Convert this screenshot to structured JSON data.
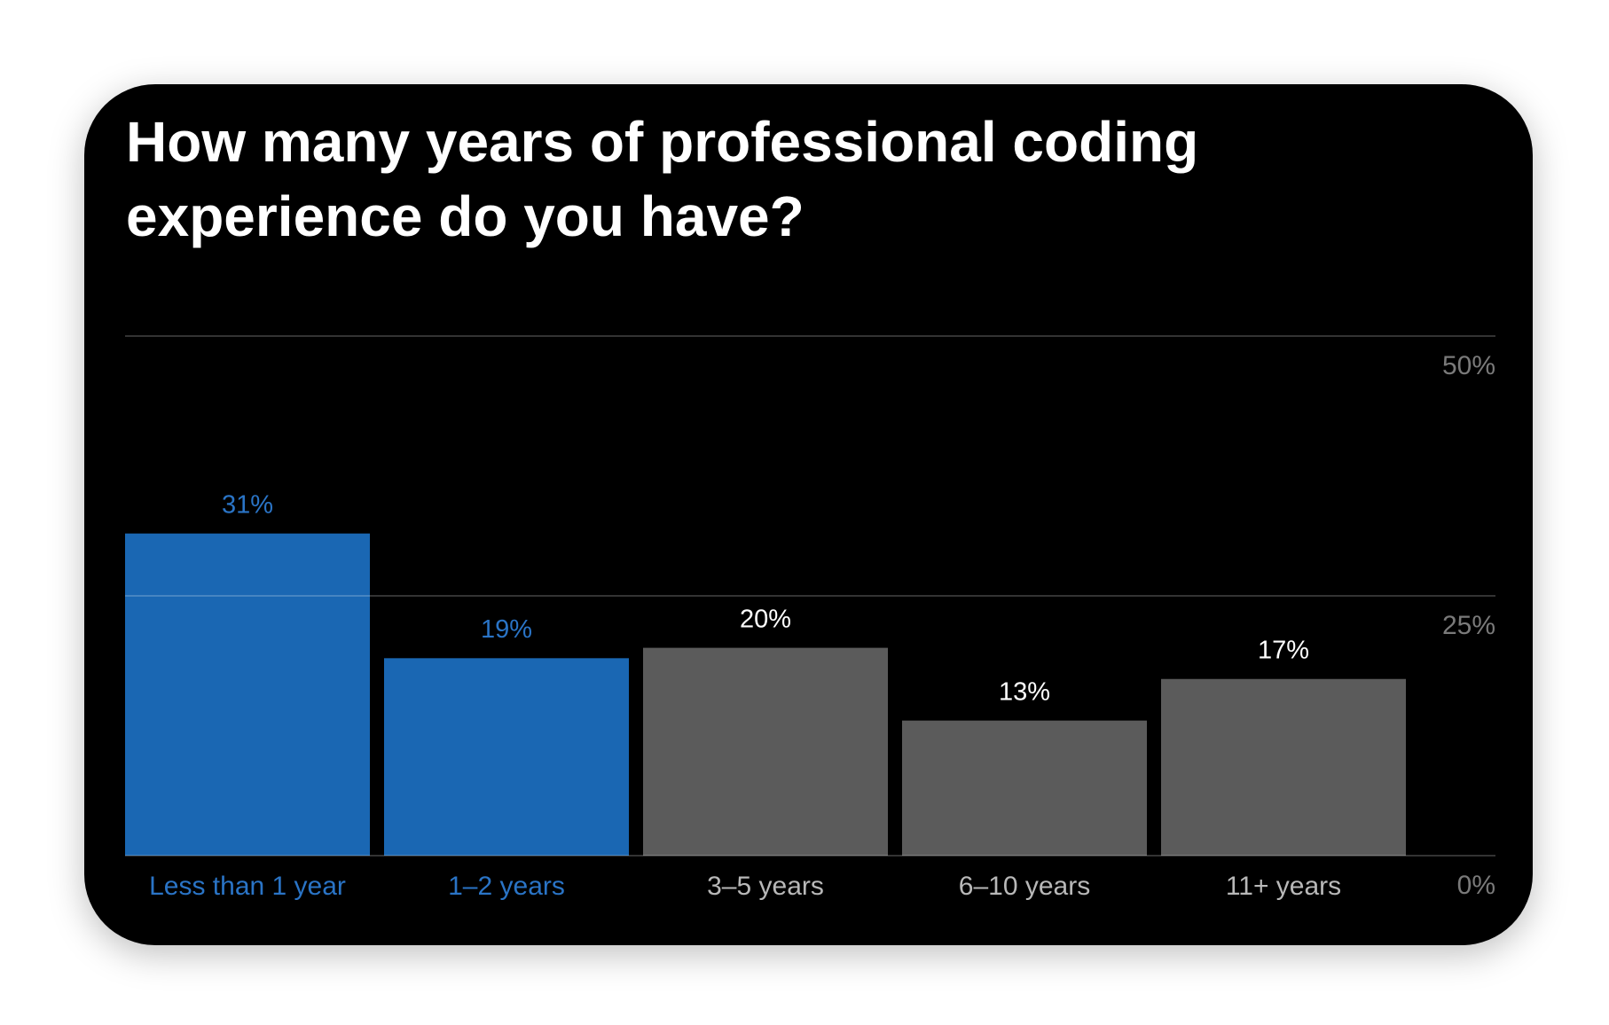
{
  "chart_data": {
    "type": "bar",
    "title": "How many years of professional coding experience do you have?",
    "categories": [
      "Less than 1 year",
      "1–2 years",
      "3–5 years",
      "6–10 years",
      "11+ years"
    ],
    "values": [
      31,
      19,
      20,
      13,
      17
    ],
    "value_labels": [
      "31%",
      "19%",
      "20%",
      "13%",
      "17%"
    ],
    "colors": [
      "#1a67b3",
      "#1a67b3",
      "#5b5b5b",
      "#5b5b5b",
      "#5b5b5b"
    ],
    "label_colors": [
      "#2a74c6",
      "#2a74c6",
      "#ffffff",
      "#ffffff",
      "#ffffff"
    ],
    "category_label_colors": [
      "#2a74c6",
      "#2a74c6",
      "#b8b8b8",
      "#b8b8b8",
      "#b8b8b8"
    ],
    "ylim": [
      0,
      50
    ],
    "yticks": [
      {
        "value": 0,
        "label": "0%"
      },
      {
        "value": 25,
        "label": "25%"
      },
      {
        "value": 50,
        "label": "50%"
      }
    ],
    "grid": true
  }
}
